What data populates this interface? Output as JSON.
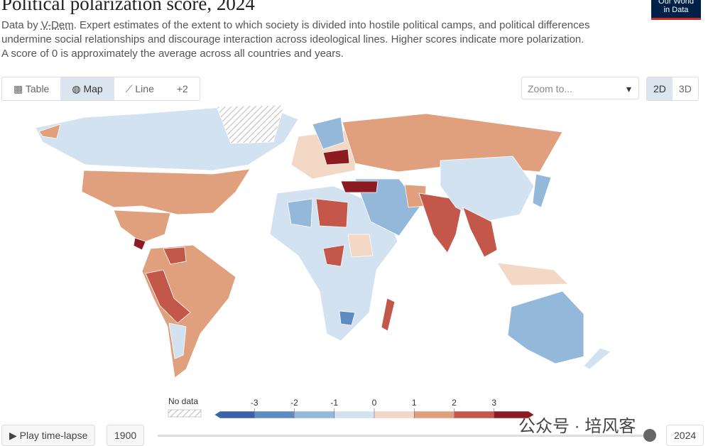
{
  "header": {
    "title": "Political polarization score, 2024",
    "source_prefix": "Data by",
    "source": "V-Dem",
    "subtitle": ". Expert estimates of the extent to which society is divided into hostile political camps, and political differences undermine social relationships and discourage interaction across ideological lines. Higher scores indicate more polarization.",
    "subtitle2": "A score of 0 is approximately the average across all countries and years.",
    "logo": [
      "Our World",
      "in Data"
    ]
  },
  "tabs": [
    "Table",
    "Map",
    "Line",
    "+2"
  ],
  "zoom": "Zoom to...",
  "views": [
    "2D",
    "3D"
  ],
  "legend": {
    "no_data": "No data",
    "ticks": [
      -3,
      -2,
      -1,
      0,
      1,
      2,
      3
    ],
    "colors": [
      "#3b62a8",
      "#5d8cc3",
      "#94b8da",
      "#d2e2f0",
      "#f3d8c6",
      "#e0a07e",
      "#c3584a",
      "#8c1c22"
    ]
  },
  "timeline": {
    "play": "Play time-lapse",
    "start": 1900,
    "end": 2024
  },
  "watermark": "公众号 · 培风客"
}
